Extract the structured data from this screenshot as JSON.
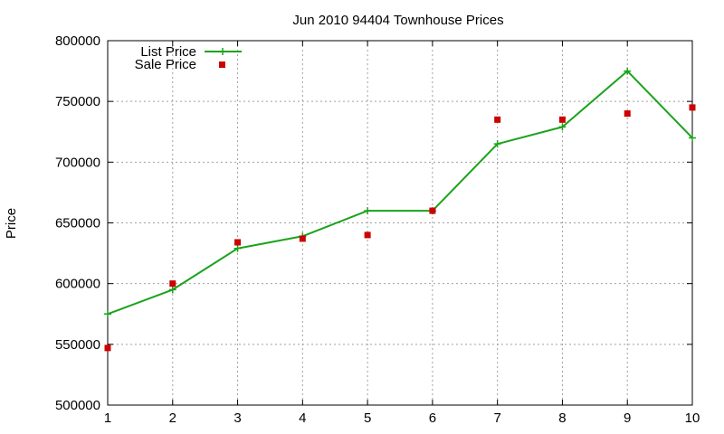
{
  "chart_data": {
    "type": "line",
    "title": "Jun 2010 94404 Townhouse Prices",
    "xlabel": "",
    "ylabel": "Price",
    "xlim": [
      1,
      10
    ],
    "ylim": [
      500000,
      800000
    ],
    "x_ticks": [
      1,
      2,
      3,
      4,
      5,
      6,
      7,
      8,
      9,
      10
    ],
    "y_ticks": [
      500000,
      550000,
      600000,
      650000,
      700000,
      750000,
      800000
    ],
    "grid": true,
    "legend_position": "top-left",
    "series": [
      {
        "name": "List Price",
        "style": "line-with-plus-markers",
        "color": "#1aa31a",
        "x": [
          1,
          2,
          3,
          4,
          5,
          6,
          7,
          8,
          9,
          10
        ],
        "values": [
          575000,
          595000,
          629000,
          639000,
          660000,
          660000,
          715000,
          729000,
          775000,
          720000
        ]
      },
      {
        "name": "Sale Price",
        "style": "square-markers",
        "color": "#cc0000",
        "x": [
          1,
          2,
          3,
          4,
          5,
          6,
          7,
          8,
          9,
          10
        ],
        "values": [
          547000,
          600000,
          634000,
          637000,
          640000,
          660000,
          735000,
          735000,
          740000,
          745000
        ]
      }
    ]
  }
}
